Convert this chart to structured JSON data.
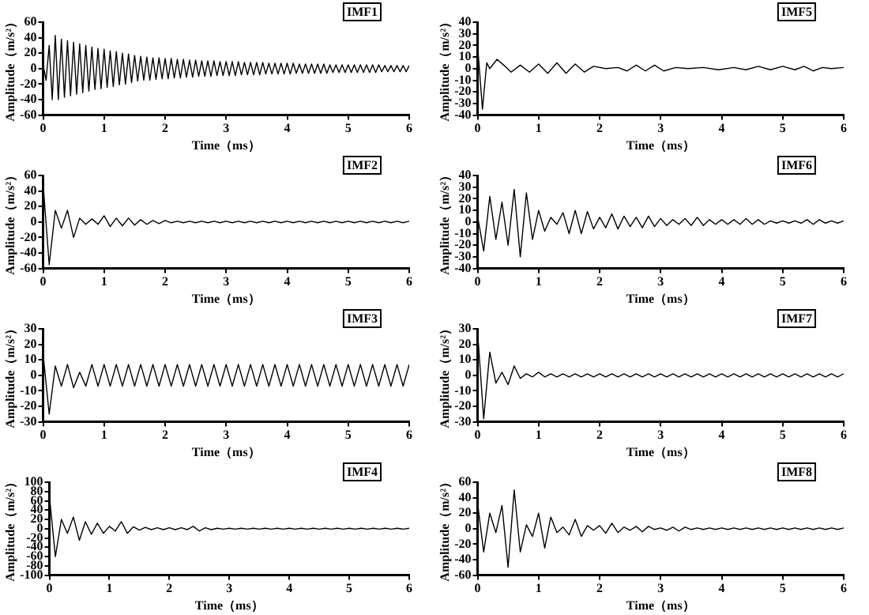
{
  "chart_data": [
    {
      "type": "line",
      "title": "IMF1",
      "xlabel": "Time（ms）",
      "ylabel": "Amplitude（m/s²）",
      "color": "#000000",
      "xlim": [
        0,
        6
      ],
      "xticks": [
        0,
        1,
        2,
        3,
        4,
        5,
        6
      ],
      "ylim": [
        -60,
        60
      ],
      "yticks": [
        -60,
        -40,
        -20,
        0,
        20,
        40,
        60
      ],
      "grid": false,
      "x": [
        0,
        0.05,
        0.1,
        0.15,
        0.2,
        0.25,
        0.3,
        0.35,
        0.4,
        0.45,
        0.5,
        0.55,
        0.6,
        0.65,
        0.7,
        0.75,
        0.8,
        0.85,
        0.9,
        0.95,
        1,
        1.05,
        1.1,
        1.15,
        1.2,
        1.25,
        1.3,
        1.35,
        1.4,
        1.45,
        1.5,
        1.55,
        1.6,
        1.65,
        1.7,
        1.75,
        1.8,
        1.85,
        1.9,
        1.95,
        2,
        2.05,
        2.1,
        2.15,
        2.2,
        2.25,
        2.3,
        2.35,
        2.4,
        2.45,
        2.5,
        2.55,
        2.6,
        2.65,
        2.7,
        2.75,
        2.8,
        2.85,
        2.9,
        2.95,
        3,
        3.05,
        3.1,
        3.15,
        3.2,
        3.25,
        3.3,
        3.35,
        3.4,
        3.45,
        3.5,
        3.55,
        3.6,
        3.65,
        3.7,
        3.75,
        3.8,
        3.85,
        3.9,
        3.95,
        4,
        4.05,
        4.1,
        4.15,
        4.2,
        4.25,
        4.3,
        4.35,
        4.4,
        4.45,
        4.5,
        4.55,
        4.6,
        4.65,
        4.7,
        4.75,
        4.8,
        4.85,
        4.9,
        4.95,
        5,
        5.05,
        5.1,
        5.15,
        5.2,
        5.25,
        5.3,
        5.35,
        5.4,
        5.45,
        5.5,
        5.55,
        5.6,
        5.65,
        5.7,
        5.75,
        5.8,
        5.85,
        5.9,
        5.95,
        6
      ],
      "values": [
        5,
        -15,
        30,
        -40,
        43,
        -40,
        38,
        -37,
        36,
        -35,
        34,
        -33,
        32,
        -31,
        30,
        -29,
        28,
        -27,
        26,
        -26,
        25,
        -24,
        23,
        -23,
        22,
        -21,
        20,
        -20,
        19,
        -18,
        17,
        -16,
        16,
        -15,
        15,
        -15,
        14,
        -14,
        14,
        -13,
        13,
        -13,
        13,
        -12,
        12,
        -12,
        12,
        -11,
        11,
        -11,
        11,
        -10,
        10,
        -10,
        10,
        -10,
        10,
        -9,
        9,
        -9,
        9,
        -9,
        9,
        -9,
        9,
        -8,
        8,
        -8,
        8,
        -8,
        8,
        -8,
        8,
        -7,
        7,
        -7,
        7,
        -7,
        7,
        -7,
        7,
        -7,
        7,
        -6,
        6,
        -6,
        6,
        -6,
        6,
        -6,
        6,
        -6,
        6,
        -6,
        5,
        -5,
        5,
        -5,
        5,
        -5,
        5,
        -5,
        5,
        -5,
        5,
        -5,
        5,
        -5,
        5,
        -5,
        5,
        -4,
        4,
        -4,
        4,
        -4,
        4,
        -4,
        4,
        -4,
        4
      ]
    },
    {
      "type": "line",
      "title": "IMF5",
      "xlabel": "Time（ms）",
      "ylabel": "Amplitude（m/s²）",
      "color": "#000000",
      "xlim": [
        0,
        6
      ],
      "xticks": [
        0,
        1,
        2,
        3,
        4,
        5,
        6
      ],
      "ylim": [
        -40,
        40
      ],
      "yticks": [
        -40,
        -30,
        -20,
        -10,
        0,
        10,
        20,
        30,
        40
      ],
      "grid": false,
      "x": [
        0,
        0.08,
        0.15,
        0.2,
        0.32,
        0.45,
        0.55,
        0.7,
        0.85,
        1.0,
        1.15,
        1.3,
        1.45,
        1.6,
        1.75,
        1.9,
        2.1,
        2.3,
        2.45,
        2.6,
        2.75,
        2.9,
        3.05,
        3.25,
        3.45,
        3.7,
        3.95,
        4.2,
        4.4,
        4.6,
        4.8,
        5.0,
        5.2,
        5.35,
        5.5,
        5.65,
        5.8,
        6.0
      ],
      "values": [
        20,
        -35,
        5,
        0,
        8,
        2,
        -3,
        3,
        -3,
        4,
        -4,
        5,
        -4,
        4,
        -3,
        2,
        0,
        1,
        -2,
        3,
        -2,
        3,
        -2,
        1,
        0,
        1,
        -1,
        1,
        -1,
        2,
        -1,
        2,
        -1,
        2,
        -2,
        1,
        0,
        1
      ]
    },
    {
      "type": "line",
      "title": "IMF2",
      "xlabel": "Time（ms）",
      "ylabel": "Amplitude（m/s²）",
      "color": "#000000",
      "xlim": [
        0,
        6
      ],
      "xticks": [
        0,
        1,
        2,
        3,
        4,
        5,
        6
      ],
      "ylim": [
        -60,
        60
      ],
      "yticks": [
        -60,
        -40,
        -20,
        0,
        20,
        40,
        60
      ],
      "grid": false,
      "x": [
        0,
        0.1,
        0.2,
        0.3,
        0.4,
        0.5,
        0.6,
        0.7,
        0.8,
        0.9,
        1,
        1.1,
        1.2,
        1.3,
        1.4,
        1.5,
        1.6,
        1.7,
        1.8,
        1.9,
        2,
        2.1,
        2.2,
        2.3,
        2.4,
        2.5,
        2.6,
        2.7,
        2.8,
        2.9,
        3,
        3.1,
        3.2,
        3.3,
        3.4,
        3.5,
        3.6,
        3.7,
        3.8,
        3.9,
        4,
        4.1,
        4.2,
        4.3,
        4.4,
        4.5,
        4.6,
        4.7,
        4.8,
        4.9,
        5,
        5.1,
        5.2,
        5.3,
        5.4,
        5.5,
        5.6,
        5.7,
        5.8,
        5.9,
        6
      ],
      "values": [
        50,
        -55,
        15,
        -8,
        15,
        -20,
        5,
        -3,
        4,
        -3,
        8,
        -6,
        5,
        -5,
        5,
        -4,
        3,
        -3,
        2,
        -2,
        2,
        -1,
        1,
        -1,
        1,
        -1,
        1,
        -1,
        1,
        -1,
        1,
        -1,
        1,
        -1,
        1,
        -1,
        1,
        -1,
        1,
        -1,
        1,
        -1,
        1,
        -1,
        1,
        -1,
        1,
        -1,
        1,
        -1,
        1,
        -1,
        1,
        -1,
        1,
        -1,
        1,
        -1,
        1,
        -1,
        1
      ]
    },
    {
      "type": "line",
      "title": "IMF6",
      "xlabel": "Time（ms）",
      "ylabel": "Amplitude（m/s²）",
      "color": "#000000",
      "xlim": [
        0,
        6
      ],
      "xticks": [
        0,
        1,
        2,
        3,
        4,
        5,
        6
      ],
      "ylim": [
        -40,
        40
      ],
      "yticks": [
        -40,
        -30,
        -20,
        -10,
        0,
        10,
        20,
        30,
        40
      ],
      "grid": false,
      "x": [
        0,
        0.1,
        0.2,
        0.3,
        0.4,
        0.5,
        0.6,
        0.7,
        0.8,
        0.9,
        1,
        1.1,
        1.2,
        1.3,
        1.4,
        1.5,
        1.6,
        1.7,
        1.8,
        1.9,
        2,
        2.1,
        2.2,
        2.3,
        2.4,
        2.5,
        2.6,
        2.7,
        2.8,
        2.9,
        3,
        3.1,
        3.2,
        3.3,
        3.4,
        3.5,
        3.6,
        3.7,
        3.8,
        3.9,
        4,
        4.1,
        4.2,
        4.3,
        4.4,
        4.5,
        4.6,
        4.7,
        4.8,
        4.9,
        5,
        5.1,
        5.2,
        5.3,
        5.4,
        5.5,
        5.6,
        5.7,
        5.8,
        5.9,
        6
      ],
      "values": [
        5,
        -25,
        22,
        -15,
        17,
        -20,
        28,
        -30,
        25,
        -15,
        10,
        -8,
        4,
        -2,
        8,
        -10,
        10,
        -10,
        9,
        -6,
        4,
        -5,
        7,
        -6,
        5,
        -4,
        4,
        -5,
        5,
        -4,
        3,
        -3,
        2,
        -2,
        3,
        -3,
        4,
        -3,
        2,
        -2,
        2,
        -2,
        2,
        -2,
        3,
        -2,
        2,
        -2,
        1,
        -1,
        1,
        -1,
        1,
        -1,
        2,
        -2,
        2,
        -1,
        1,
        -1,
        1
      ]
    },
    {
      "type": "line",
      "title": "IMF3",
      "xlabel": "Time（ms）",
      "ylabel": "Amplitude（m/s²）",
      "color": "#000000",
      "xlim": [
        0,
        6
      ],
      "xticks": [
        0,
        1,
        2,
        3,
        4,
        5,
        6
      ],
      "ylim": [
        -30,
        30
      ],
      "yticks": [
        -30,
        -20,
        -10,
        0,
        10,
        20,
        30
      ],
      "grid": false,
      "x": [
        0,
        0.1,
        0.2,
        0.3,
        0.4,
        0.5,
        0.6,
        0.7,
        0.8,
        0.9,
        1,
        1.1,
        1.2,
        1.3,
        1.4,
        1.5,
        1.6,
        1.7,
        1.8,
        1.9,
        2,
        2.1,
        2.2,
        2.3,
        2.4,
        2.5,
        2.6,
        2.7,
        2.8,
        2.9,
        3,
        3.1,
        3.2,
        3.3,
        3.4,
        3.5,
        3.6,
        3.7,
        3.8,
        3.9,
        4,
        4.1,
        4.2,
        4.3,
        4.4,
        4.5,
        4.6,
        4.7,
        4.8,
        4.9,
        5,
        5.1,
        5.2,
        5.3,
        5.4,
        5.5,
        5.6,
        5.7,
        5.8,
        5.9,
        6
      ],
      "values": [
        14,
        -25,
        6,
        -7,
        7,
        -8,
        2,
        -7,
        7,
        -7,
        7,
        -7,
        7,
        -7,
        7,
        -7,
        7,
        -7,
        7,
        -7,
        7,
        -7,
        7,
        -7,
        7,
        -7,
        7,
        -7,
        7,
        -7,
        7,
        -7,
        7,
        -7,
        7,
        -7,
        7,
        -7,
        7,
        -7,
        7,
        -7,
        7,
        -7,
        7,
        -7,
        7,
        -7,
        7,
        -7,
        7,
        -7,
        7,
        -7,
        7,
        -7,
        7,
        -7,
        7,
        -7,
        7
      ]
    },
    {
      "type": "line",
      "title": "IMF7",
      "xlabel": "Time（ms）",
      "ylabel": "Amplitude（m/s²）",
      "color": "#000000",
      "xlim": [
        0,
        6
      ],
      "xticks": [
        0,
        1,
        2,
        3,
        4,
        5,
        6
      ],
      "ylim": [
        -30,
        30
      ],
      "yticks": [
        -30,
        -20,
        -10,
        0,
        10,
        20,
        30
      ],
      "grid": false,
      "x": [
        0,
        0.1,
        0.2,
        0.3,
        0.4,
        0.5,
        0.6,
        0.7,
        0.8,
        0.9,
        1,
        1.1,
        1.2,
        1.3,
        1.4,
        1.5,
        1.6,
        1.7,
        1.8,
        1.9,
        2,
        2.1,
        2.2,
        2.3,
        2.4,
        2.5,
        2.6,
        2.7,
        2.8,
        2.9,
        3,
        3.1,
        3.2,
        3.3,
        3.4,
        3.5,
        3.6,
        3.7,
        3.8,
        3.9,
        4,
        4.1,
        4.2,
        4.3,
        4.4,
        4.5,
        4.6,
        4.7,
        4.8,
        4.9,
        5,
        5.1,
        5.2,
        5.3,
        5.4,
        5.5,
        5.6,
        5.7,
        5.8,
        5.9,
        6
      ],
      "values": [
        28,
        -28,
        15,
        -5,
        2,
        -6,
        6,
        -2,
        1,
        -1,
        2,
        -1,
        1,
        -1,
        1,
        -1,
        1,
        -1,
        1,
        -1,
        1,
        -1,
        1,
        -1,
        1,
        -1,
        1,
        -1,
        1,
        -1,
        1,
        -1,
        1,
        -1,
        1,
        -1,
        1,
        -1,
        1,
        -1,
        1,
        -1,
        1,
        -1,
        1,
        -1,
        1,
        -1,
        1,
        -1,
        1,
        -1,
        1,
        -1,
        1,
        -1,
        1,
        -1,
        1,
        -1,
        1
      ]
    },
    {
      "type": "line",
      "title": "IMF4",
      "xlabel": "Time（ms）",
      "ylabel": "Amplitude（m/s²）",
      "color": "#000000",
      "xlim": [
        0,
        6
      ],
      "xticks": [
        0,
        1,
        2,
        3,
        4,
        5,
        6
      ],
      "ylim": [
        -100,
        100
      ],
      "yticks": [
        -100,
        -80,
        -60,
        -40,
        -20,
        0,
        20,
        40,
        60,
        80,
        100
      ],
      "grid": false,
      "x": [
        0,
        0.1,
        0.2,
        0.3,
        0.4,
        0.5,
        0.6,
        0.7,
        0.8,
        0.9,
        1,
        1.1,
        1.2,
        1.3,
        1.4,
        1.5,
        1.6,
        1.7,
        1.8,
        1.9,
        2,
        2.1,
        2.2,
        2.3,
        2.4,
        2.5,
        2.6,
        2.7,
        2.8,
        2.9,
        3,
        3.1,
        3.2,
        3.3,
        3.4,
        3.5,
        3.6,
        3.7,
        3.8,
        3.9,
        4,
        4.1,
        4.2,
        4.3,
        4.4,
        4.5,
        4.6,
        4.7,
        4.8,
        4.9,
        5,
        5.1,
        5.2,
        5.3,
        5.4,
        5.5,
        5.6,
        5.7,
        5.8,
        5.9,
        6
      ],
      "values": [
        70,
        -60,
        20,
        -10,
        25,
        -25,
        15,
        -12,
        12,
        -10,
        5,
        -5,
        15,
        -10,
        4,
        -3,
        3,
        -2,
        2,
        -2,
        2,
        -2,
        2,
        -2,
        5,
        -5,
        2,
        -2,
        1,
        -1,
        1,
        -1,
        1,
        -1,
        1,
        -1,
        1,
        -1,
        1,
        -1,
        1,
        -1,
        1,
        -1,
        1,
        -1,
        1,
        -1,
        1,
        -1,
        1,
        -1,
        1,
        -1,
        1,
        -1,
        1,
        -1,
        1,
        -1,
        1
      ]
    },
    {
      "type": "line",
      "title": "IMF8",
      "xlabel": "Time（ms）",
      "ylabel": "Amplitude（m/s²）",
      "color": "#000000",
      "xlim": [
        0,
        6
      ],
      "xticks": [
        0,
        1,
        2,
        3,
        4,
        5,
        6
      ],
      "ylim": [
        -60,
        60
      ],
      "yticks": [
        -60,
        -40,
        -20,
        0,
        20,
        40,
        60
      ],
      "grid": false,
      "x": [
        0,
        0.1,
        0.2,
        0.3,
        0.4,
        0.5,
        0.6,
        0.7,
        0.8,
        0.9,
        1,
        1.1,
        1.2,
        1.3,
        1.4,
        1.5,
        1.6,
        1.7,
        1.8,
        1.9,
        2,
        2.1,
        2.2,
        2.3,
        2.4,
        2.5,
        2.6,
        2.7,
        2.8,
        2.9,
        3,
        3.1,
        3.2,
        3.3,
        3.4,
        3.5,
        3.6,
        3.7,
        3.8,
        3.9,
        4,
        4.1,
        4.2,
        4.3,
        4.4,
        4.5,
        4.6,
        4.7,
        4.8,
        4.9,
        5,
        5.1,
        5.2,
        5.3,
        5.4,
        5.5,
        5.6,
        5.7,
        5.8,
        5.9,
        6
      ],
      "values": [
        33,
        -30,
        20,
        -5,
        30,
        -50,
        50,
        -30,
        5,
        -10,
        20,
        -25,
        15,
        -5,
        2,
        -8,
        12,
        -10,
        4,
        -2,
        4,
        -6,
        7,
        -5,
        2,
        -2,
        3,
        -4,
        3,
        -1,
        1,
        -2,
        2,
        -3,
        2,
        -1,
        1,
        -1,
        1,
        -1,
        1,
        -1,
        1,
        -1,
        1,
        -1,
        1,
        -1,
        1,
        -1,
        1,
        -1,
        1,
        -1,
        1,
        -1,
        1,
        -1,
        1,
        -1,
        1
      ]
    }
  ]
}
